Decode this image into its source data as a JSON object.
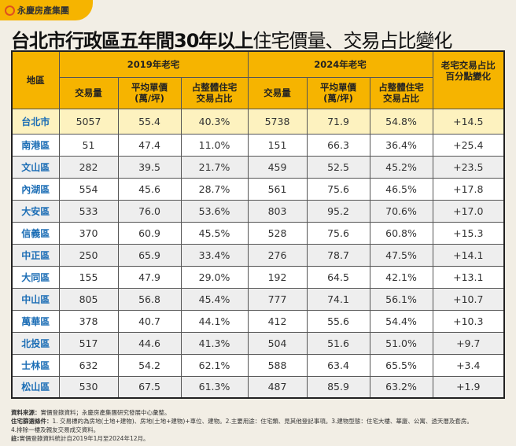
{
  "logo": "永慶房產集團",
  "title_bold": "台北市行政區五年間30年以上",
  "title_rest": "住宅價量、交易占比變化",
  "colors": {
    "header": "#f6b400",
    "city_row": "#fdf2bf",
    "district_name": "#1b6db5",
    "background": "#f2eee5"
  },
  "headers": {
    "district": "地區",
    "group2019": "2019年老宅",
    "group2024": "2024年老宅",
    "change": "老宅交易占比\n百分點變化",
    "volume": "交易量",
    "price": "平均單價\n(萬/坪)",
    "share": "占整體住宅\n交易占比"
  },
  "city": {
    "name": "台北市",
    "v19": "5057",
    "p19": "55.4",
    "s19": "40.3%",
    "v24": "5738",
    "p24": "71.9",
    "s24": "54.8%",
    "chg": "+14.5"
  },
  "rows": [
    [
      "南港區",
      "51",
      "47.4",
      "11.0%",
      "151",
      "66.3",
      "36.4%",
      "+25.4"
    ],
    [
      "文山區",
      "282",
      "39.5",
      "21.7%",
      "459",
      "52.5",
      "45.2%",
      "+23.5"
    ],
    [
      "內湖區",
      "554",
      "45.6",
      "28.7%",
      "561",
      "75.6",
      "46.5%",
      "+17.8"
    ],
    [
      "大安區",
      "533",
      "76.0",
      "53.6%",
      "803",
      "95.2",
      "70.6%",
      "+17.0"
    ],
    [
      "信義區",
      "370",
      "60.9",
      "45.5%",
      "528",
      "75.6",
      "60.8%",
      "+15.3"
    ],
    [
      "中正區",
      "250",
      "65.9",
      "33.4%",
      "276",
      "78.7",
      "47.5%",
      "+14.1"
    ],
    [
      "大同區",
      "155",
      "47.9",
      "29.0%",
      "192",
      "64.5",
      "42.1%",
      "+13.1"
    ],
    [
      "中山區",
      "805",
      "56.8",
      "45.4%",
      "777",
      "74.1",
      "56.1%",
      "+10.7"
    ],
    [
      "萬華區",
      "378",
      "40.7",
      "44.1%",
      "412",
      "55.6",
      "54.4%",
      "+10.3"
    ],
    [
      "北投區",
      "517",
      "44.6",
      "41.3%",
      "504",
      "51.6",
      "51.0%",
      "+9.7"
    ],
    [
      "士林區",
      "632",
      "54.2",
      "62.1%",
      "588",
      "63.4",
      "65.5%",
      "+3.4"
    ],
    [
      "松山區",
      "530",
      "67.5",
      "61.3%",
      "487",
      "85.9",
      "63.2%",
      "+1.9"
    ]
  ],
  "notes": {
    "source_label": "資料來源：",
    "source": "實價登錄資料；永慶房產集團研究發展中心彙整。",
    "filter_label": "住宅篩選條件：",
    "filter": "1. 交易標的為房地(土地+建物)、房地(土地+建物)+車位、建物。2.主要用途：住宅類、見其他登記事項。3.建物型態：住宅大樓、華廈、公寓、透天厝及套房。",
    "filter2": "4.排除一樓及親友交易成交資料。",
    "note_label": "註:",
    "note": "實價登錄資料統計自2019年1月至2024年12月。"
  }
}
